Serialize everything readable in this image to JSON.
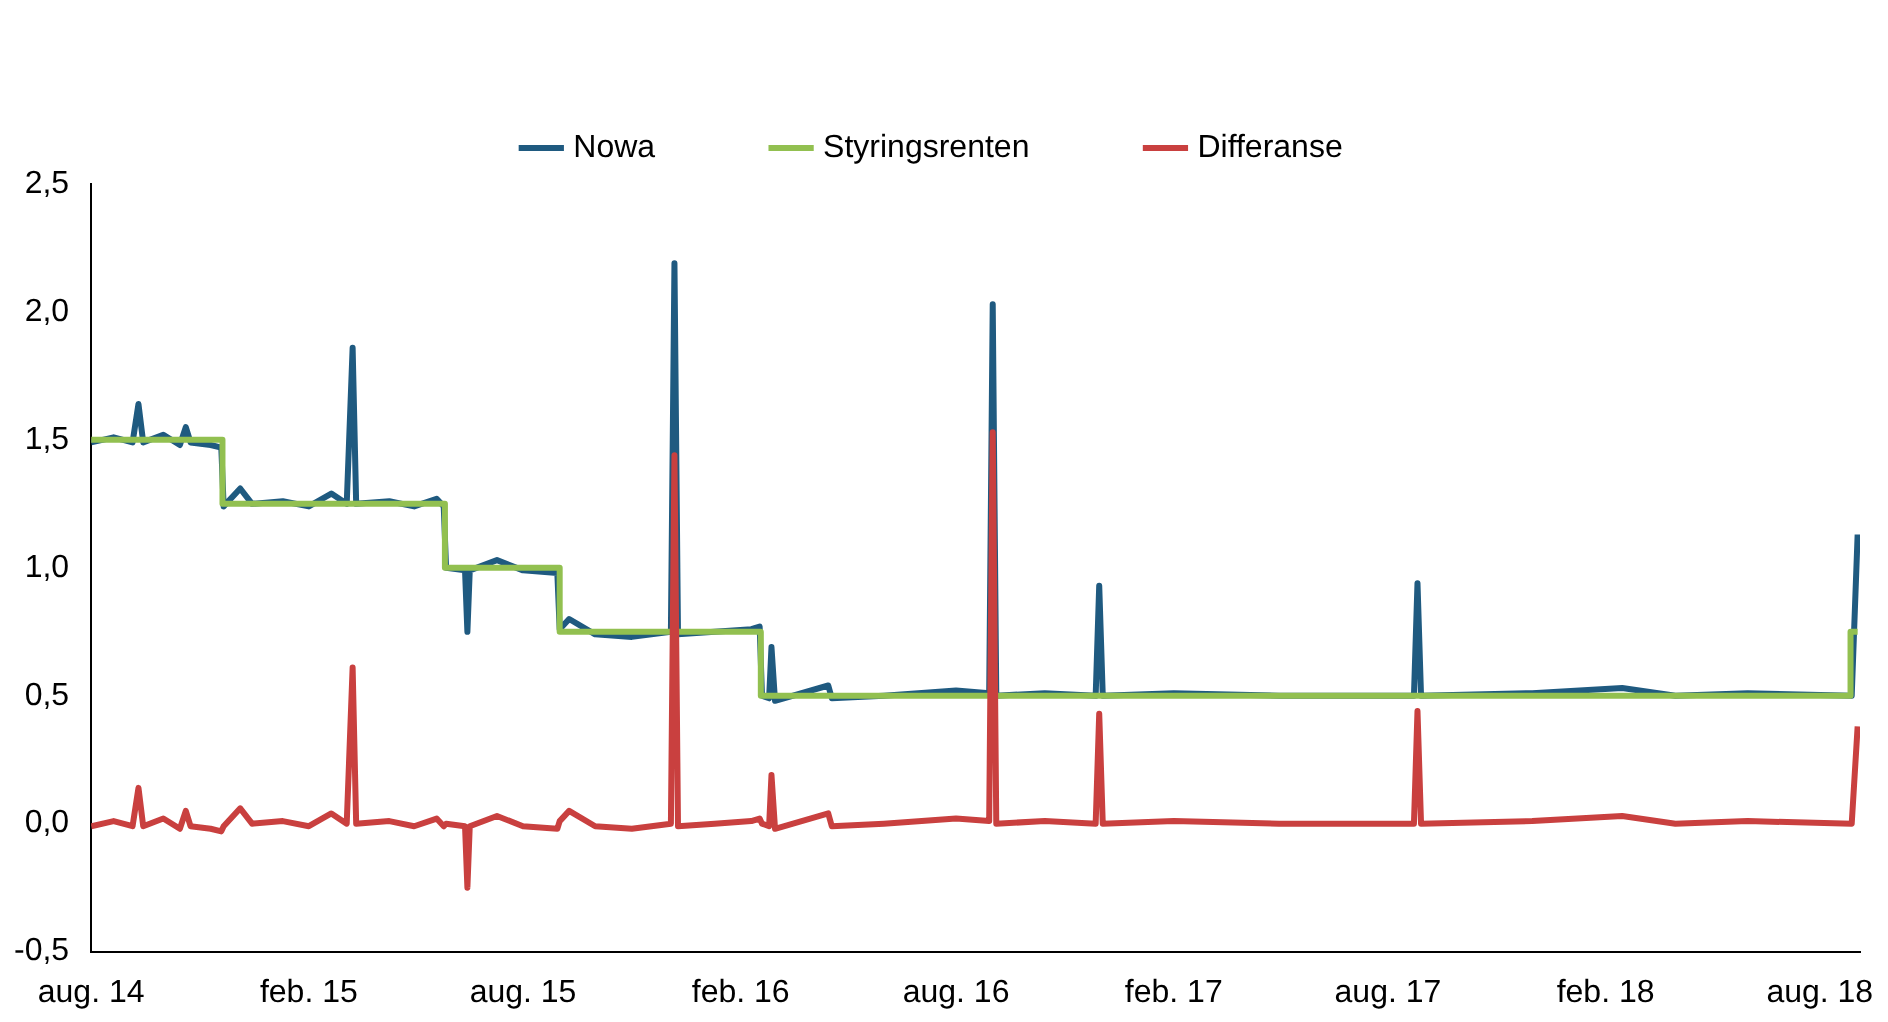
{
  "chart_data": {
    "type": "line",
    "legend": "top",
    "grid": false,
    "marker": "none",
    "line_style": "solid",
    "xlim": [
      "2014-08-01",
      "2018-09-04"
    ],
    "xticks": [
      {
        "value": "2014-08-01",
        "label": "aug. 14"
      },
      {
        "value": "2015-02-01",
        "label": "feb. 15"
      },
      {
        "value": "2015-08-01",
        "label": "aug. 15"
      },
      {
        "value": "2016-02-01",
        "label": "feb. 16"
      },
      {
        "value": "2016-08-01",
        "label": "aug. 16"
      },
      {
        "value": "2017-02-01",
        "label": "feb. 17"
      },
      {
        "value": "2017-08-01",
        "label": "aug. 17"
      },
      {
        "value": "2018-02-01",
        "label": "feb. 18"
      },
      {
        "value": "2018-08-01",
        "label": "aug. 18"
      }
    ],
    "ylim": [
      -0.5,
      2.5
    ],
    "yticks": [
      {
        "value": -0.5,
        "label": "-0,5"
      },
      {
        "value": 0,
        "label": "0,0"
      },
      {
        "value": 0.5,
        "label": "0,5"
      },
      {
        "value": 1,
        "label": "1,0"
      },
      {
        "value": 1.5,
        "label": "1,5"
      },
      {
        "value": 2,
        "label": "2,0"
      },
      {
        "value": 2.5,
        "label": "2,5"
      }
    ],
    "x": [
      "2014-08-01",
      "2014-08-20",
      "2014-09-05",
      "2014-09-10",
      "2014-09-14",
      "2014-10-01",
      "2014-10-15",
      "2014-10-20",
      "2014-10-24",
      "2014-11-10",
      "2014-11-19",
      "2014-11-21",
      "2014-12-05",
      "2014-12-15",
      "2015-01-10",
      "2015-02-01",
      "2015-02-20",
      "2015-03-05",
      "2015-03-10",
      "2015-03-13",
      "2015-04-10",
      "2015-05-01",
      "2015-05-20",
      "2015-05-26",
      "2015-05-28",
      "2015-06-13",
      "2015-06-15",
      "2015-06-17",
      "2015-07-10",
      "2015-08-01",
      "2015-08-30",
      "2015-09-01",
      "2015-09-09",
      "2015-10-01",
      "2015-11-01",
      "2015-12-04",
      "2015-12-07",
      "2015-12-10",
      "2016-01-10",
      "2016-02-10",
      "2016-02-17",
      "2016-02-19",
      "2016-02-25",
      "2016-02-27",
      "2016-03-01",
      "2016-04-15",
      "2016-04-18",
      "2016-06-01",
      "2016-08-01",
      "2016-08-29",
      "2016-09-01",
      "2016-09-04",
      "2016-10-15",
      "2016-11-27",
      "2016-11-30",
      "2016-12-03",
      "2017-02-01",
      "2017-05-01",
      "2017-08-23",
      "2017-08-26",
      "2017-08-29",
      "2017-12-01",
      "2018-02-15",
      "2018-04-01",
      "2018-06-01",
      "2018-08-28",
      "2018-09-02"
    ],
    "series": [
      {
        "name": "Nowa",
        "color": "#1f5a80",
        "values": [
          1.49,
          1.51,
          1.49,
          1.64,
          1.49,
          1.52,
          1.48,
          1.55,
          1.49,
          1.48,
          1.47,
          1.24,
          1.31,
          1.25,
          1.26,
          1.24,
          1.29,
          1.25,
          1.86,
          1.25,
          1.26,
          1.24,
          1.27,
          1.24,
          1.0,
          0.99,
          0.75,
          0.99,
          1.03,
          0.99,
          0.98,
          0.76,
          0.8,
          0.74,
          0.73,
          0.75,
          2.19,
          0.74,
          0.75,
          0.76,
          0.77,
          0.5,
          0.49,
          0.69,
          0.48,
          0.54,
          0.49,
          0.5,
          0.52,
          0.51,
          2.03,
          0.5,
          0.51,
          0.5,
          0.93,
          0.5,
          0.51,
          0.5,
          0.5,
          0.94,
          0.5,
          0.51,
          0.53,
          0.5,
          0.51,
          0.5,
          1.13
        ]
      },
      {
        "name": "Styringsrenten",
        "type": "step",
        "color": "#92c050",
        "x": [
          "2014-08-01",
          "2014-11-20",
          "2015-05-27",
          "2015-09-01",
          "2016-02-18",
          "2018-08-27",
          "2018-09-02"
        ],
        "values": [
          1.5,
          1.25,
          1.0,
          0.75,
          0.5,
          0.75,
          0.75
        ]
      },
      {
        "name": "Differanse",
        "color": "#c9403f",
        "values": [
          -0.01,
          0.01,
          -0.01,
          0.14,
          -0.01,
          0.02,
          -0.02,
          0.05,
          -0.01,
          -0.02,
          -0.03,
          -0.01,
          0.06,
          0.0,
          0.01,
          -0.01,
          0.04,
          0.0,
          0.61,
          0.0,
          0.01,
          -0.01,
          0.02,
          -0.01,
          0.0,
          -0.01,
          -0.25,
          -0.01,
          0.03,
          -0.01,
          -0.02,
          0.01,
          0.05,
          -0.01,
          -0.02,
          0.0,
          1.44,
          -0.01,
          0.0,
          0.01,
          0.02,
          0.0,
          -0.01,
          0.19,
          -0.02,
          0.04,
          -0.01,
          0.0,
          0.02,
          0.01,
          1.53,
          0.0,
          0.01,
          0.0,
          0.43,
          0.0,
          0.01,
          0.0,
          0.0,
          0.44,
          0.0,
          0.01,
          0.03,
          0.0,
          0.01,
          0.0,
          0.38
        ]
      }
    ]
  }
}
